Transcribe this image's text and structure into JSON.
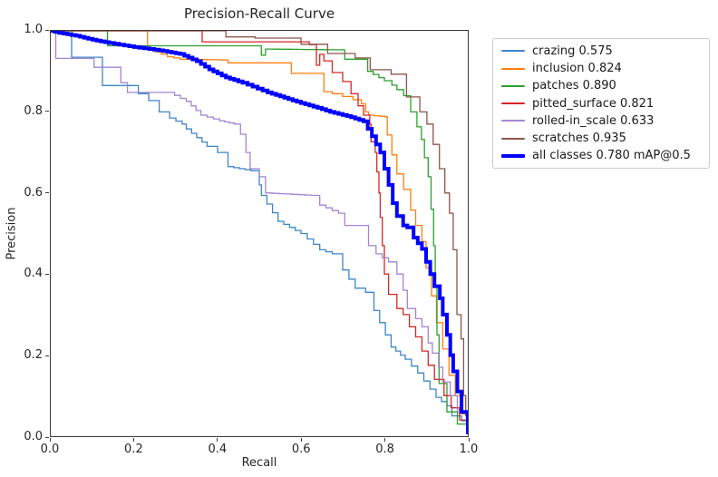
{
  "figure": {
    "title": "Precision-Recall Curve",
    "xlabel": "Recall",
    "ylabel": "Precision",
    "spine_color": "#3a3a3a",
    "background": "#ffffff"
  },
  "chart_data": {
    "type": "line",
    "title": "Precision-Recall Curve",
    "xlabel": "Recall",
    "ylabel": "Precision",
    "xlim": [
      0.0,
      1.0
    ],
    "ylim": [
      0.0,
      1.0
    ],
    "xticks": [
      "0.0",
      "0.2",
      "0.4",
      "0.6",
      "0.8",
      "1.0"
    ],
    "yticks": [
      "0.0",
      "0.2",
      "0.4",
      "0.6",
      "0.8",
      "1.0"
    ],
    "grid": false,
    "legend_position": "outside-right-top",
    "curve_style": "step",
    "series": [
      {
        "name": "crazing",
        "legend_label": "crazing 0.575",
        "ap": 0.575,
        "color": "#3d85c8",
        "line_width": 1.3,
        "points": [
          [
            0,
            1
          ],
          [
            0.05,
            1
          ],
          [
            0.05,
            0.935
          ],
          [
            0.124,
            0.935
          ],
          [
            0.124,
            0.865
          ],
          [
            0.21,
            0.865
          ],
          [
            0.21,
            0.845
          ],
          [
            0.235,
            0.828
          ],
          [
            0.26,
            0.8
          ],
          [
            0.285,
            0.785
          ],
          [
            0.315,
            0.77
          ],
          [
            0.325,
            0.758
          ],
          [
            0.375,
            0.715
          ],
          [
            0.4,
            0.7
          ],
          [
            0.425,
            0.665
          ],
          [
            0.48,
            0.655
          ],
          [
            0.5,
            0.62
          ],
          [
            0.505,
            0.594
          ],
          [
            0.545,
            0.53
          ],
          [
            0.6,
            0.5
          ],
          [
            0.645,
            0.46
          ],
          [
            0.675,
            0.45
          ],
          [
            0.7,
            0.41
          ],
          [
            0.73,
            0.365
          ],
          [
            0.755,
            0.355
          ],
          [
            0.775,
            0.31
          ],
          [
            0.816,
            0.22
          ],
          [
            0.85,
            0.19
          ],
          [
            0.88,
            0.156
          ],
          [
            0.924,
            0.096
          ],
          [
            0.95,
            0.075
          ],
          [
            0.962,
            0.05
          ],
          [
            0.985,
            0.038
          ],
          [
            1,
            0.005
          ]
        ]
      },
      {
        "name": "inclusion",
        "legend_label": "inclusion 0.824",
        "ap": 0.824,
        "color": "#ff7f0e",
        "line_width": 1.3,
        "points": [
          [
            0,
            1
          ],
          [
            0.232,
            1
          ],
          [
            0.232,
            0.954
          ],
          [
            0.25,
            0.948
          ],
          [
            0.28,
            0.936
          ],
          [
            0.31,
            0.93
          ],
          [
            0.42,
            0.928
          ],
          [
            0.425,
            0.921
          ],
          [
            0.577,
            0.921
          ],
          [
            0.577,
            0.895
          ],
          [
            0.655,
            0.895
          ],
          [
            0.655,
            0.85
          ],
          [
            0.675,
            0.845
          ],
          [
            0.7,
            0.838
          ],
          [
            0.725,
            0.83
          ],
          [
            0.745,
            0.82
          ],
          [
            0.755,
            0.8
          ],
          [
            0.762,
            0.792
          ],
          [
            0.802,
            0.788
          ],
          [
            0.807,
            0.743
          ],
          [
            0.818,
            0.694
          ],
          [
            0.83,
            0.647
          ],
          [
            0.846,
            0.609
          ],
          [
            0.863,
            0.558
          ],
          [
            0.875,
            0.52
          ],
          [
            0.89,
            0.48
          ],
          [
            0.9,
            0.415
          ],
          [
            0.913,
            0.346
          ],
          [
            0.925,
            0.28
          ],
          [
            0.94,
            0.215
          ],
          [
            0.955,
            0.15
          ],
          [
            0.97,
            0.1
          ],
          [
            0.985,
            0.055
          ],
          [
            1,
            0.01
          ]
        ]
      },
      {
        "name": "patches",
        "legend_label": "patches 0.890",
        "ap": 0.89,
        "color": "#2ca02c",
        "line_width": 1.3,
        "points": [
          [
            0,
            1
          ],
          [
            0.136,
            1
          ],
          [
            0.136,
            0.963
          ],
          [
            0.5,
            0.963
          ],
          [
            0.505,
            0.94
          ],
          [
            0.515,
            0.955
          ],
          [
            0.7,
            0.953
          ],
          [
            0.705,
            0.93
          ],
          [
            0.755,
            0.93
          ],
          [
            0.76,
            0.9
          ],
          [
            0.8,
            0.877
          ],
          [
            0.818,
            0.866
          ],
          [
            0.83,
            0.855
          ],
          [
            0.846,
            0.84
          ],
          [
            0.863,
            0.8
          ],
          [
            0.878,
            0.763
          ],
          [
            0.889,
            0.732
          ],
          [
            0.896,
            0.687
          ],
          [
            0.905,
            0.64
          ],
          [
            0.912,
            0.56
          ],
          [
            0.918,
            0.47
          ],
          [
            0.922,
            0.37
          ],
          [
            0.926,
            0.25
          ],
          [
            0.931,
            0.13
          ],
          [
            0.95,
            0.06
          ],
          [
            0.975,
            0.03
          ],
          [
            1,
            0.005
          ]
        ]
      },
      {
        "name": "pitted_surface",
        "legend_label": "pitted_surface 0.821",
        "ap": 0.821,
        "color": "#d62728",
        "line_width": 1.3,
        "points": [
          [
            0,
            1
          ],
          [
            0.363,
            1
          ],
          [
            0.363,
            0.973
          ],
          [
            0.62,
            0.973
          ],
          [
            0.62,
            0.966
          ],
          [
            0.633,
            0.966
          ],
          [
            0.637,
            0.915
          ],
          [
            0.645,
            0.942
          ],
          [
            0.655,
            0.926
          ],
          [
            0.675,
            0.897
          ],
          [
            0.7,
            0.875
          ],
          [
            0.72,
            0.845
          ],
          [
            0.737,
            0.815
          ],
          [
            0.75,
            0.792
          ],
          [
            0.765,
            0.77
          ],
          [
            0.768,
            0.726
          ],
          [
            0.778,
            0.7
          ],
          [
            0.782,
            0.652
          ],
          [
            0.787,
            0.6
          ],
          [
            0.79,
            0.54
          ],
          [
            0.795,
            0.47
          ],
          [
            0.8,
            0.4
          ],
          [
            0.81,
            0.35
          ],
          [
            0.83,
            0.315
          ],
          [
            0.845,
            0.3
          ],
          [
            0.86,
            0.27
          ],
          [
            0.875,
            0.245
          ],
          [
            0.89,
            0.21
          ],
          [
            0.905,
            0.175
          ],
          [
            0.92,
            0.14
          ],
          [
            0.943,
            0.1
          ],
          [
            0.96,
            0.07
          ],
          [
            0.98,
            0.04
          ],
          [
            1,
            0.01
          ]
        ]
      },
      {
        "name": "rolled-in_scale",
        "legend_label": "rolled-in_scale 0.633",
        "ap": 0.633,
        "color": "#a285d2",
        "line_width": 1.3,
        "points": [
          [
            0,
            1
          ],
          [
            0.012,
            1
          ],
          [
            0.012,
            0.932
          ],
          [
            0.104,
            0.932
          ],
          [
            0.104,
            0.91
          ],
          [
            0.168,
            0.91
          ],
          [
            0.168,
            0.872
          ],
          [
            0.184,
            0.872
          ],
          [
            0.184,
            0.848
          ],
          [
            0.283,
            0.848
          ],
          [
            0.325,
            0.826
          ],
          [
            0.36,
            0.792
          ],
          [
            0.405,
            0.778
          ],
          [
            0.44,
            0.77
          ],
          [
            0.455,
            0.745
          ],
          [
            0.468,
            0.7
          ],
          [
            0.478,
            0.66
          ],
          [
            0.5,
            0.64
          ],
          [
            0.515,
            0.6
          ],
          [
            0.625,
            0.594
          ],
          [
            0.645,
            0.57
          ],
          [
            0.69,
            0.55
          ],
          [
            0.705,
            0.52
          ],
          [
            0.755,
            0.52
          ],
          [
            0.762,
            0.47
          ],
          [
            0.78,
            0.45
          ],
          [
            0.81,
            0.43
          ],
          [
            0.83,
            0.4
          ],
          [
            0.845,
            0.36
          ],
          [
            0.855,
            0.315
          ],
          [
            0.875,
            0.29
          ],
          [
            0.89,
            0.27
          ],
          [
            0.905,
            0.23
          ],
          [
            0.915,
            0.205
          ],
          [
            0.93,
            0.17
          ],
          [
            0.94,
            0.134
          ],
          [
            0.958,
            0.1
          ],
          [
            0.975,
            0.06
          ],
          [
            1,
            0.005
          ]
        ]
      },
      {
        "name": "scratches",
        "legend_label": "scratches 0.935",
        "ap": 0.935,
        "color": "#8c564b",
        "line_width": 1.3,
        "points": [
          [
            0,
            1
          ],
          [
            0.42,
            1
          ],
          [
            0.42,
            0.985
          ],
          [
            0.49,
            0.985
          ],
          [
            0.49,
            0.982
          ],
          [
            0.6,
            0.982
          ],
          [
            0.6,
            0.967
          ],
          [
            0.664,
            0.967
          ],
          [
            0.664,
            0.944
          ],
          [
            0.73,
            0.944
          ],
          [
            0.73,
            0.933
          ],
          [
            0.766,
            0.933
          ],
          [
            0.766,
            0.904
          ],
          [
            0.816,
            0.904
          ],
          [
            0.816,
            0.893
          ],
          [
            0.853,
            0.893
          ],
          [
            0.853,
            0.837
          ],
          [
            0.885,
            0.837
          ],
          [
            0.885,
            0.8
          ],
          [
            0.902,
            0.8
          ],
          [
            0.902,
            0.77
          ],
          [
            0.917,
            0.77
          ],
          [
            0.917,
            0.72
          ],
          [
            0.932,
            0.72
          ],
          [
            0.932,
            0.66
          ],
          [
            0.945,
            0.66
          ],
          [
            0.945,
            0.6
          ],
          [
            0.956,
            0.6
          ],
          [
            0.956,
            0.55
          ],
          [
            0.965,
            0.55
          ],
          [
            0.965,
            0.46
          ],
          [
            0.974,
            0.46
          ],
          [
            0.974,
            0.3
          ],
          [
            0.984,
            0.3
          ],
          [
            0.984,
            0.24
          ],
          [
            0.99,
            0.24
          ],
          [
            0.99,
            0.1
          ],
          [
            0.995,
            0.05
          ],
          [
            1,
            0.01
          ]
        ]
      },
      {
        "name": "all_classes",
        "legend_label": "all classes 0.780 mAP@0.5",
        "ap": 0.78,
        "color": "#0000ff",
        "line_width": 4,
        "points": [
          [
            0,
            1
          ],
          [
            0.02,
            0.995
          ],
          [
            0.06,
            0.988
          ],
          [
            0.1,
            0.978
          ],
          [
            0.14,
            0.97
          ],
          [
            0.2,
            0.96
          ],
          [
            0.26,
            0.952
          ],
          [
            0.31,
            0.943
          ],
          [
            0.35,
            0.925
          ],
          [
            0.38,
            0.905
          ],
          [
            0.42,
            0.885
          ],
          [
            0.46,
            0.872
          ],
          [
            0.52,
            0.848
          ],
          [
            0.56,
            0.835
          ],
          [
            0.6,
            0.822
          ],
          [
            0.64,
            0.81
          ],
          [
            0.67,
            0.8
          ],
          [
            0.71,
            0.79
          ],
          [
            0.75,
            0.777
          ],
          [
            0.77,
            0.74
          ],
          [
            0.79,
            0.7
          ],
          [
            0.8,
            0.66
          ],
          [
            0.81,
            0.62
          ],
          [
            0.82,
            0.575
          ],
          [
            0.83,
            0.543
          ],
          [
            0.845,
            0.52
          ],
          [
            0.855,
            0.515
          ],
          [
            0.87,
            0.49
          ],
          [
            0.89,
            0.462
          ],
          [
            0.9,
            0.43
          ],
          [
            0.91,
            0.4
          ],
          [
            0.92,
            0.37
          ],
          [
            0.933,
            0.34
          ],
          [
            0.94,
            0.3
          ],
          [
            0.95,
            0.25
          ],
          [
            0.958,
            0.2
          ],
          [
            0.965,
            0.16
          ],
          [
            0.975,
            0.11
          ],
          [
            0.985,
            0.06
          ],
          [
            1,
            0.005
          ]
        ]
      }
    ]
  }
}
